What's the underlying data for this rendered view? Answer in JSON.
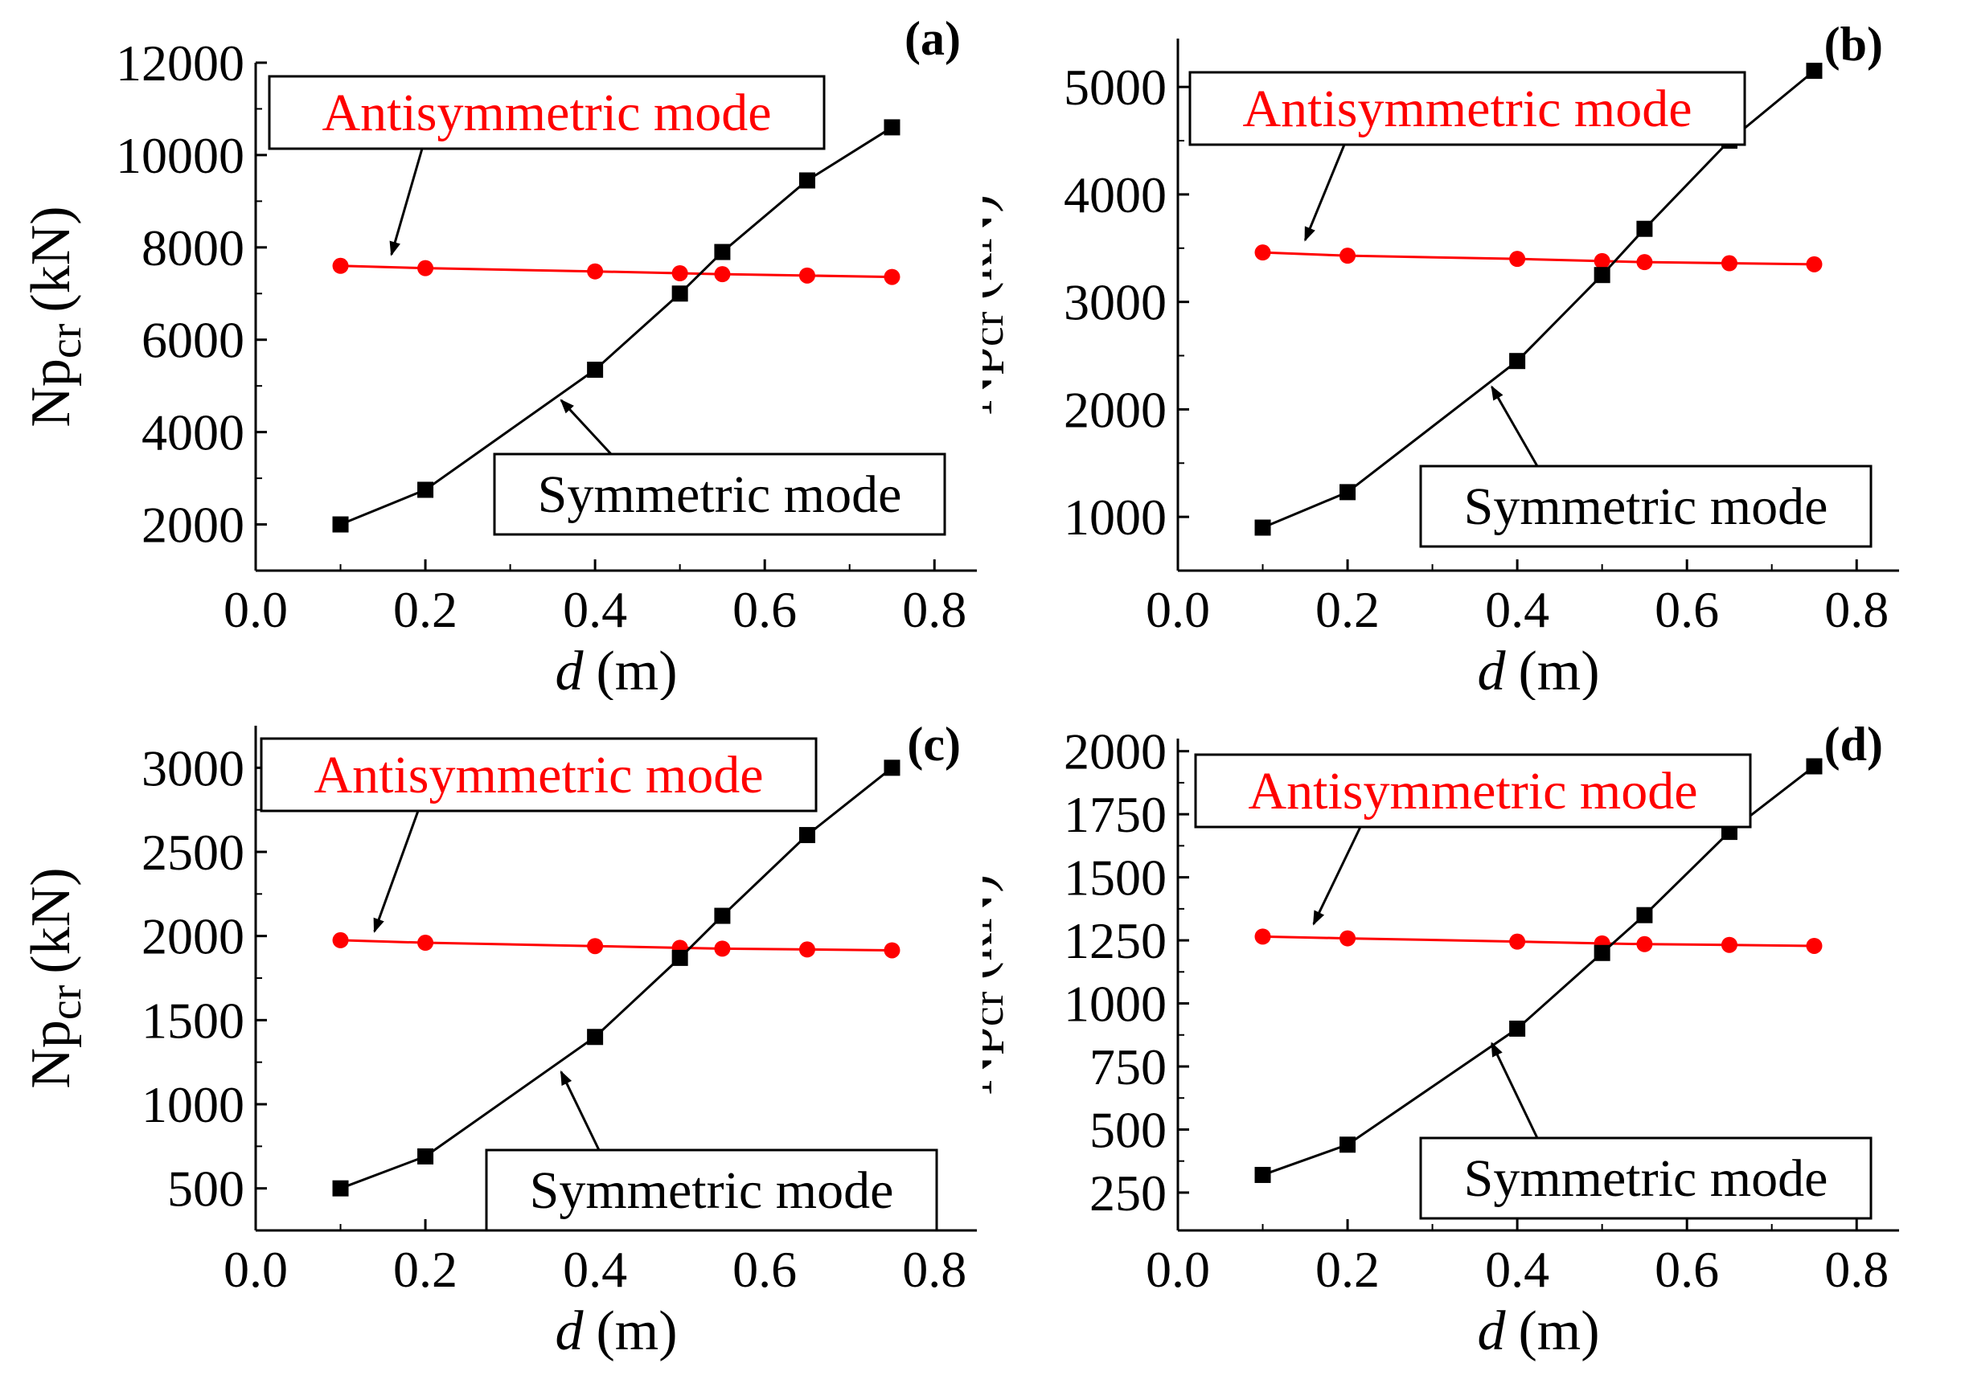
{
  "figure": {
    "colors": {
      "antisymmetric": "#ff0000",
      "symmetric": "#000000",
      "axis": "#000000",
      "background": "#ffffff"
    },
    "panels_grid": "2x2"
  },
  "chart_data": [
    {
      "type": "line",
      "panel_label": "(a)",
      "xlabel_var": "d",
      "xlabel_unit": "(m)",
      "ylabel_main": "Np",
      "ylabel_sub": "cr",
      "ylabel_unit": "(kN)",
      "xlim": [
        0.0,
        0.85
      ],
      "ylim": [
        1000,
        12000
      ],
      "xticks": [
        0.0,
        0.2,
        0.4,
        0.6,
        0.8
      ],
      "xtick_labels": [
        "0.0",
        "0.2",
        "0.4",
        "0.6",
        "0.8"
      ],
      "yticks": [
        2000,
        4000,
        6000,
        8000,
        10000,
        12000
      ],
      "ytick_labels": [
        "2000",
        "4000",
        "6000",
        "8000",
        "10000",
        "12000"
      ],
      "x": [
        0.1,
        0.2,
        0.4,
        0.5,
        0.55,
        0.65,
        0.75
      ],
      "series": [
        {
          "name": "Antisymmetric mode",
          "marker": "circle",
          "color": "#ff0000",
          "values": [
            7600,
            7550,
            7480,
            7440,
            7420,
            7390,
            7360
          ]
        },
        {
          "name": "Symmetric mode",
          "marker": "square",
          "color": "#000000",
          "values": [
            2000,
            2750,
            5350,
            7000,
            7900,
            9450,
            10600
          ]
        }
      ],
      "annotations": [
        {
          "text": "Antisymmetric mode",
          "series": 0,
          "arrow_to": [
            0.16,
            7600
          ]
        },
        {
          "text": "Symmetric mode",
          "series": 1,
          "arrow_to": [
            0.36,
            4900
          ]
        }
      ]
    },
    {
      "type": "line",
      "panel_label": "(b)",
      "xlabel_var": "d",
      "xlabel_unit": "(m)",
      "ylabel_main": "Np",
      "ylabel_sub": "cr",
      "ylabel_unit": "(kN)",
      "xlim": [
        0.0,
        0.85
      ],
      "ylim": [
        500,
        5450
      ],
      "xticks": [
        0.0,
        0.2,
        0.4,
        0.6,
        0.8
      ],
      "xtick_labels": [
        "0.0",
        "0.2",
        "0.4",
        "0.6",
        "0.8"
      ],
      "yticks": [
        1000,
        2000,
        3000,
        4000,
        5000
      ],
      "ytick_labels": [
        "1000",
        "2000",
        "3000",
        "4000",
        "5000"
      ],
      "x": [
        0.1,
        0.2,
        0.4,
        0.5,
        0.55,
        0.65,
        0.75
      ],
      "series": [
        {
          "name": "Antisymmetric mode",
          "marker": "circle",
          "color": "#ff0000",
          "values": [
            3460,
            3430,
            3400,
            3380,
            3370,
            3360,
            3350
          ]
        },
        {
          "name": "Symmetric mode",
          "marker": "square",
          "color": "#000000",
          "values": [
            900,
            1230,
            2450,
            3250,
            3680,
            4500,
            5150
          ]
        }
      ],
      "annotations": [
        {
          "text": "Antisymmetric mode",
          "series": 0,
          "arrow_to": [
            0.15,
            3470
          ]
        },
        {
          "text": "Symmetric mode",
          "series": 1,
          "arrow_to": [
            0.37,
            2300
          ]
        }
      ]
    },
    {
      "type": "line",
      "panel_label": "(c)",
      "xlabel_var": "d",
      "xlabel_unit": "(m)",
      "ylabel_main": "Np",
      "ylabel_sub": "cr",
      "ylabel_unit": "(kN)",
      "xlim": [
        0.0,
        0.85
      ],
      "ylim": [
        250,
        3250
      ],
      "xticks": [
        0.0,
        0.2,
        0.4,
        0.6,
        0.8
      ],
      "xtick_labels": [
        "0.0",
        "0.2",
        "0.4",
        "0.6",
        "0.8"
      ],
      "yticks": [
        500,
        1000,
        1500,
        2000,
        2500,
        3000
      ],
      "ytick_labels": [
        "500",
        "1000",
        "1500",
        "2000",
        "2500",
        "3000"
      ],
      "x": [
        0.1,
        0.2,
        0.4,
        0.5,
        0.55,
        0.65,
        0.75
      ],
      "series": [
        {
          "name": "Antisymmetric mode",
          "marker": "circle",
          "color": "#ff0000",
          "values": [
            1975,
            1960,
            1940,
            1930,
            1925,
            1920,
            1915
          ]
        },
        {
          "name": "Symmetric mode",
          "marker": "square",
          "color": "#000000",
          "values": [
            500,
            690,
            1400,
            1870,
            2120,
            2600,
            3000
          ]
        }
      ],
      "annotations": [
        {
          "text": "Antisymmetric mode",
          "series": 0,
          "arrow_to": [
            0.14,
            1960
          ]
        },
        {
          "text": "Symmetric mode",
          "series": 1,
          "arrow_to": [
            0.36,
            1250
          ]
        }
      ]
    },
    {
      "type": "line",
      "panel_label": "(d)",
      "xlabel_var": "d",
      "xlabel_unit": "(m)",
      "ylabel_main": "Np",
      "ylabel_sub": "cr",
      "ylabel_unit": "(kN)",
      "xlim": [
        0.0,
        0.85
      ],
      "ylim": [
        100,
        2050
      ],
      "xticks": [
        0.0,
        0.2,
        0.4,
        0.6,
        0.8
      ],
      "xtick_labels": [
        "0.0",
        "0.2",
        "0.4",
        "0.6",
        "0.8"
      ],
      "yticks": [
        250,
        500,
        750,
        1000,
        1250,
        1500,
        1750,
        2000
      ],
      "ytick_labels": [
        "250",
        "500",
        "750",
        "1000",
        "1250",
        "1500",
        "1750",
        "2000"
      ],
      "x": [
        0.1,
        0.2,
        0.4,
        0.5,
        0.55,
        0.65,
        0.75
      ],
      "series": [
        {
          "name": "Antisymmetric mode",
          "marker": "circle",
          "color": "#ff0000",
          "values": [
            1265,
            1258,
            1245,
            1238,
            1235,
            1232,
            1228
          ]
        },
        {
          "name": "Symmetric mode",
          "marker": "square",
          "color": "#000000",
          "values": [
            320,
            440,
            900,
            1200,
            1350,
            1680,
            1940
          ]
        }
      ],
      "annotations": [
        {
          "text": "Antisymmetric mode",
          "series": 0,
          "arrow_to": [
            0.16,
            1270
          ]
        },
        {
          "text": "Symmetric mode",
          "series": 1,
          "arrow_to": [
            0.37,
            880
          ]
        }
      ]
    }
  ]
}
